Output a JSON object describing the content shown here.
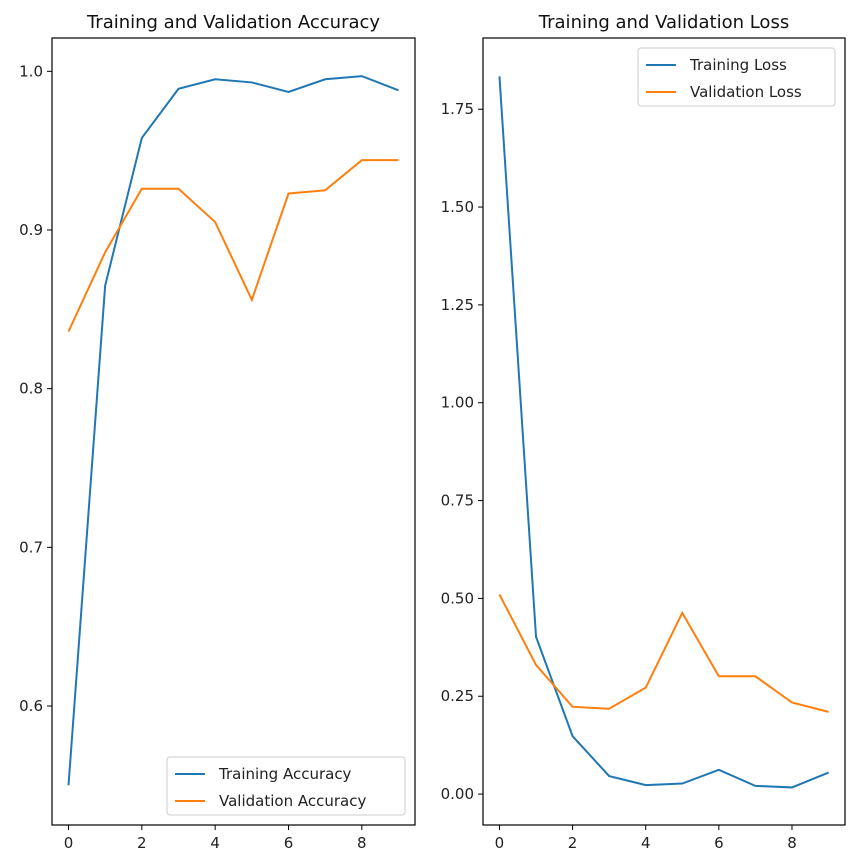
{
  "chart_data": [
    {
      "type": "line",
      "title": "Training and Validation Accuracy",
      "xlabel": "",
      "ylabel": "",
      "x": [
        0,
        1,
        2,
        3,
        4,
        5,
        6,
        7,
        8,
        9
      ],
      "xlim": [
        -0.45,
        9.45
      ],
      "ylim": [
        0.525,
        1.021
      ],
      "xticks": [
        0,
        2,
        4,
        6,
        8
      ],
      "yticks": [
        0.6,
        0.7,
        0.8,
        0.9,
        1.0
      ],
      "ytick_labels": [
        "0.6",
        "0.7",
        "0.8",
        "0.9",
        "1.0"
      ],
      "grid": false,
      "legend_position": "lower-right",
      "series": [
        {
          "name": "Training Accuracy",
          "color": "#1f77b4",
          "values": [
            0.55,
            0.865,
            0.958,
            0.989,
            0.995,
            0.993,
            0.987,
            0.995,
            0.997,
            0.988
          ]
        },
        {
          "name": "Validation Accuracy",
          "color": "#ff7f0e",
          "values": [
            0.836,
            0.886,
            0.926,
            0.926,
            0.905,
            0.856,
            0.923,
            0.925,
            0.944,
            0.944
          ]
        }
      ]
    },
    {
      "type": "line",
      "title": "Training and Validation Loss",
      "xlabel": "",
      "ylabel": "",
      "x": [
        0,
        1,
        2,
        3,
        4,
        5,
        6,
        7,
        8,
        9
      ],
      "xlim": [
        -0.45,
        9.45
      ],
      "ylim": [
        -0.079,
        1.932
      ],
      "xticks": [
        0,
        2,
        4,
        6,
        8
      ],
      "yticks": [
        0,
        0.25,
        0.5,
        0.75,
        1.0,
        1.25,
        1.5,
        1.75
      ],
      "ytick_labels": [
        "0.00",
        "0.25",
        "0.50",
        "0.75",
        "1.00",
        "1.25",
        "1.50",
        "1.75"
      ],
      "grid": false,
      "legend_position": "upper-right",
      "series": [
        {
          "name": "Training Loss",
          "color": "#1f77b4",
          "values": [
            1.834,
            0.402,
            0.148,
            0.046,
            0.023,
            0.027,
            0.062,
            0.021,
            0.017,
            0.055
          ]
        },
        {
          "name": "Validation Loss",
          "color": "#ff7f0e",
          "values": [
            0.51,
            0.33,
            0.223,
            0.218,
            0.272,
            0.463,
            0.301,
            0.301,
            0.234,
            0.21
          ]
        }
      ]
    }
  ]
}
